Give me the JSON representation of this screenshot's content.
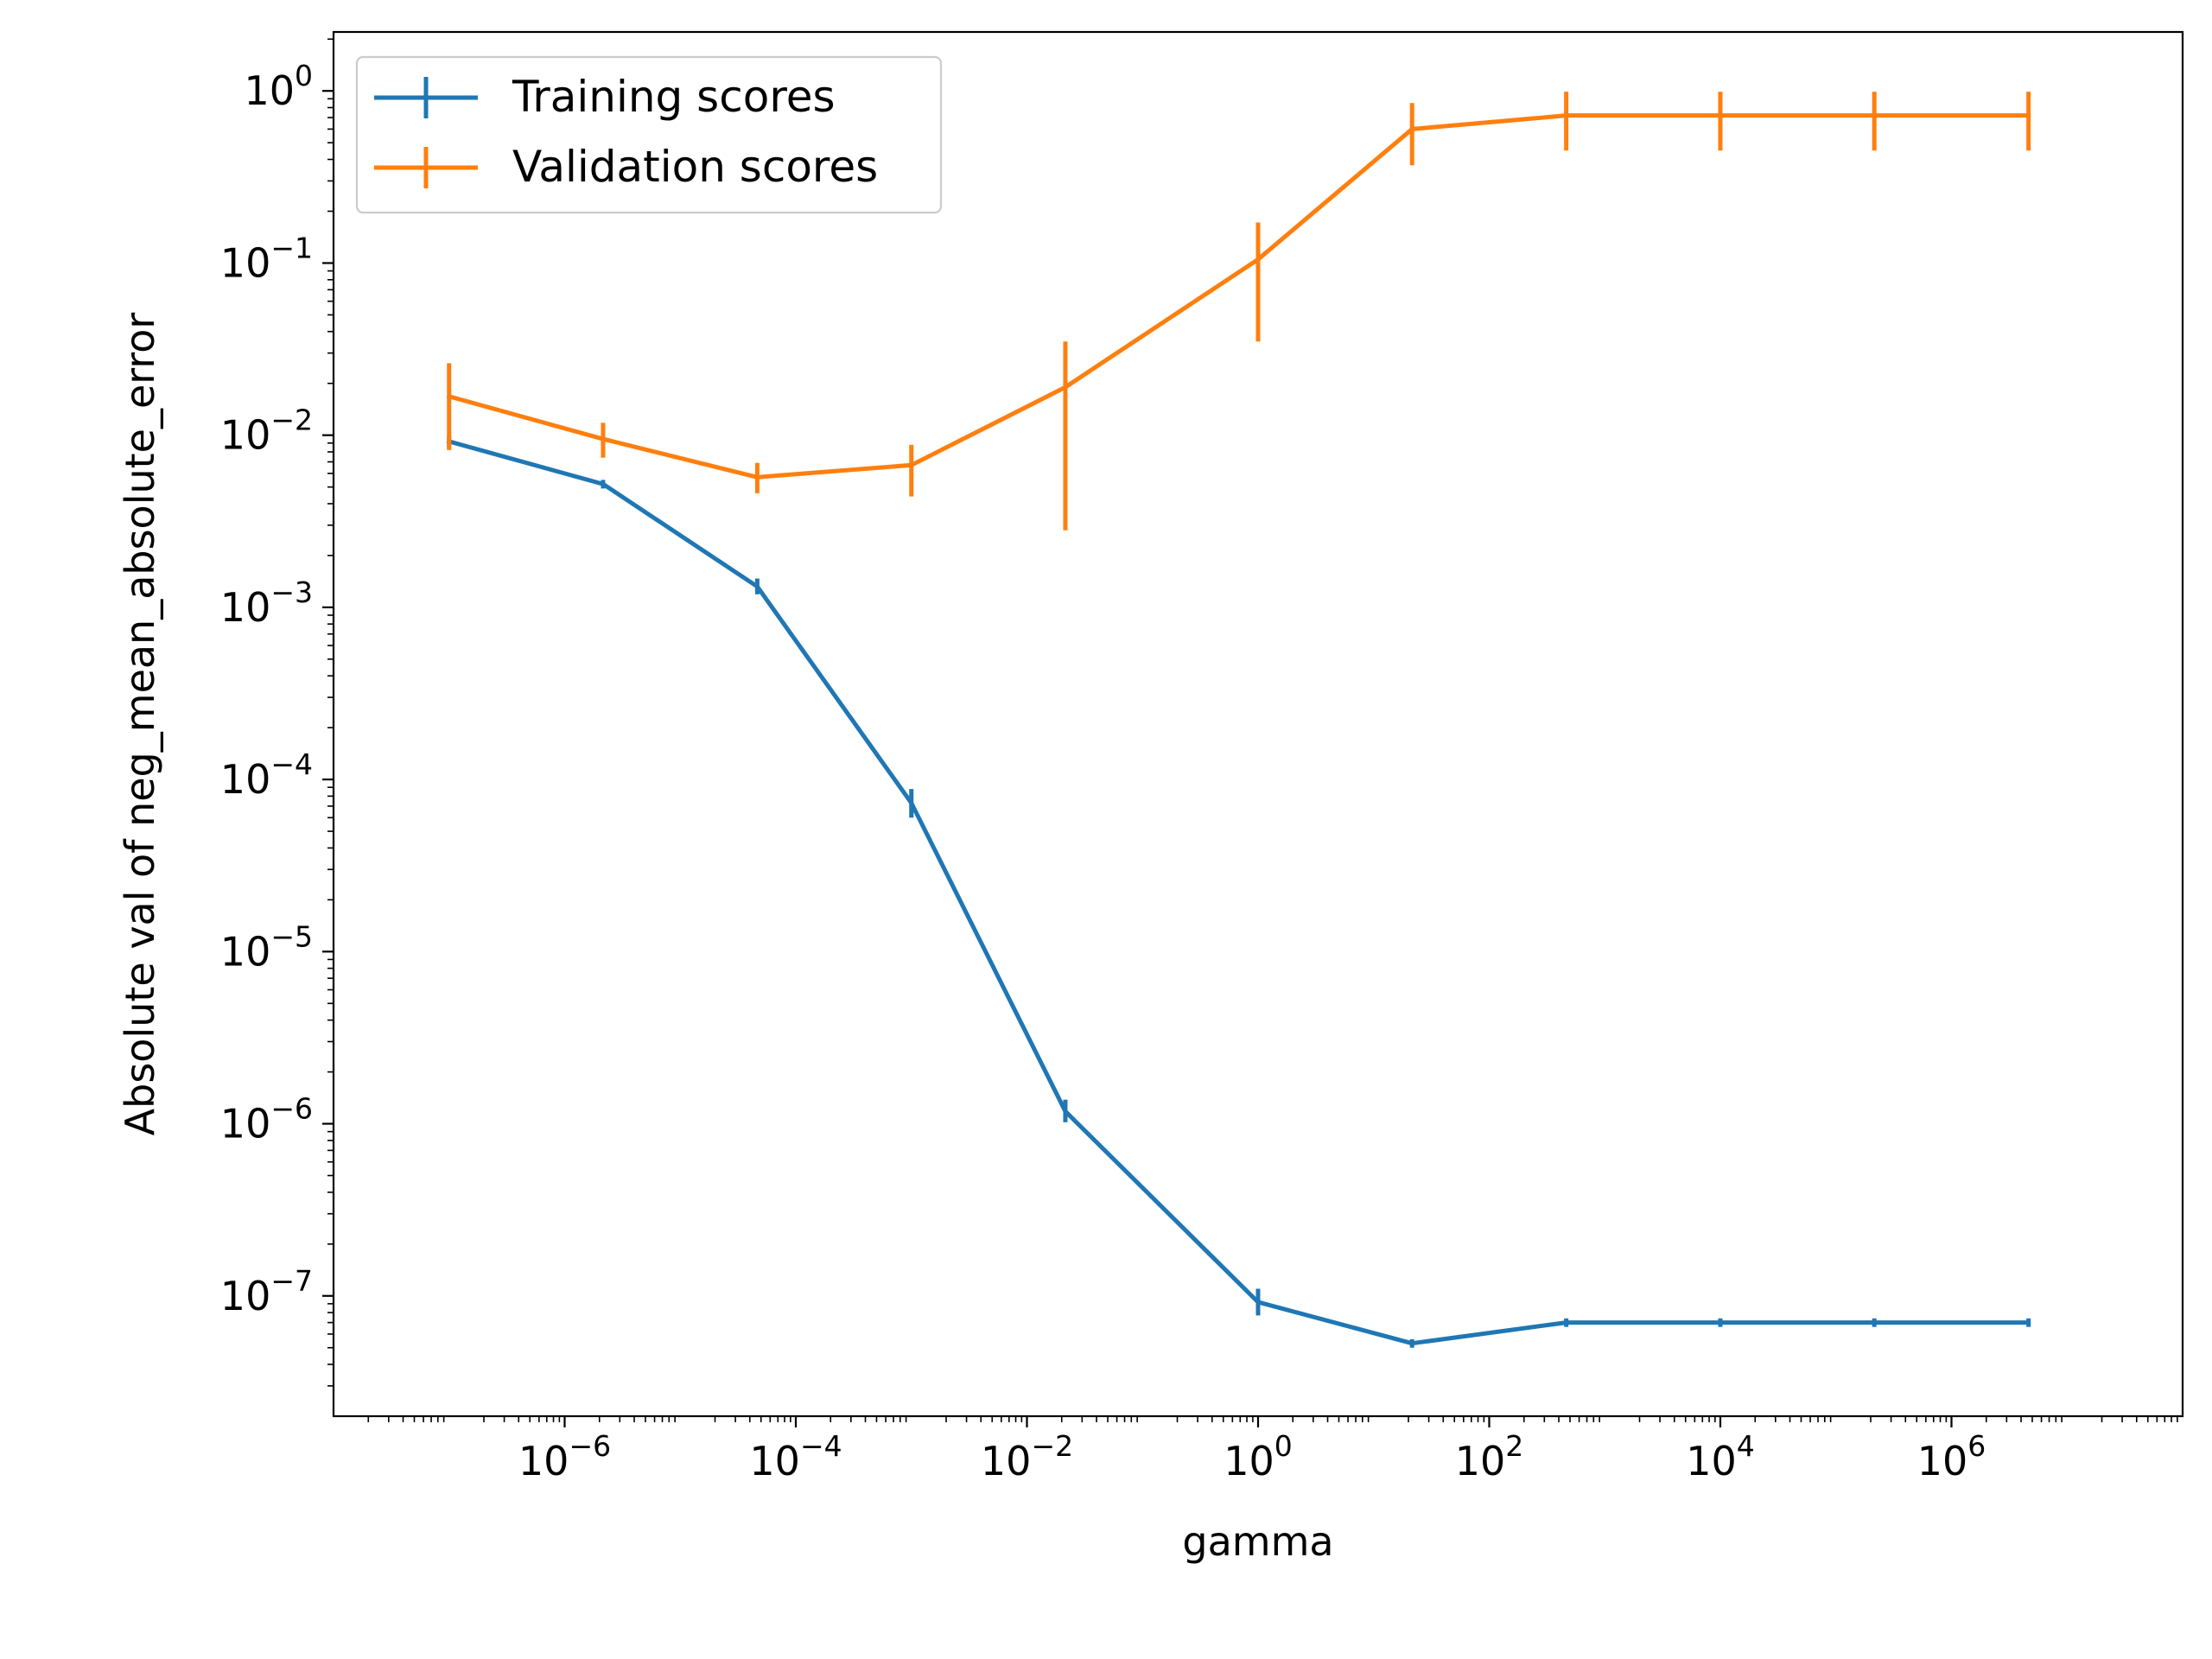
{
  "chart_data": {
    "type": "line",
    "title": "",
    "xlabel": "gamma",
    "ylabel": "Absolute val of neg_mean_absolute_error",
    "xscale": "log",
    "yscale": "log",
    "xlim": [
      1e-08,
      100000000.0
    ],
    "ylim": [
      2e-08,
      2.2
    ],
    "xticks": [
      {
        "value": 1e-06,
        "base": "10",
        "exp": "−6"
      },
      {
        "value": 0.0001,
        "base": "10",
        "exp": "−4"
      },
      {
        "value": 0.01,
        "base": "10",
        "exp": "−2"
      },
      {
        "value": 1,
        "base": "10",
        "exp": "0"
      },
      {
        "value": 100.0,
        "base": "10",
        "exp": "2"
      },
      {
        "value": 10000.0,
        "base": "10",
        "exp": "4"
      },
      {
        "value": 1000000.0,
        "base": "10",
        "exp": "6"
      }
    ],
    "yticks": [
      {
        "value": 1e-07,
        "base": "10",
        "exp": "−7"
      },
      {
        "value": 1e-06,
        "base": "10",
        "exp": "−6"
      },
      {
        "value": 1e-05,
        "base": "10",
        "exp": "−5"
      },
      {
        "value": 0.0001,
        "base": "10",
        "exp": "−4"
      },
      {
        "value": 0.001,
        "base": "10",
        "exp": "−3"
      },
      {
        "value": 0.01,
        "base": "10",
        "exp": "−2"
      },
      {
        "value": 0.1,
        "base": "10",
        "exp": "−1"
      },
      {
        "value": 1,
        "base": "10",
        "exp": "0"
      }
    ],
    "grid": false,
    "legend_position": "top-left",
    "x": [
      1e-07,
      2.15e-06,
      4.64e-05,
      0.001,
      0.0215,
      1,
      21.5,
      464,
      10000.0,
      215000.0,
      4640000.0
    ],
    "series": [
      {
        "name": "Training scores",
        "color": "#1f77b4",
        "values": [
          0.0092,
          0.0052,
          0.00132,
          7.3e-05,
          1.18e-06,
          9.2e-08,
          5.3e-08,
          7e-08,
          7e-08,
          7e-08,
          7e-08
        ],
        "err_low": [
          0.0085,
          0.0049,
          0.00119,
          6e-05,
          1.02e-06,
          7.7e-08,
          5e-08,
          6.6e-08,
          6.6e-08,
          6.6e-08,
          6.6e-08
        ],
        "err_high": [
          0.0099,
          0.0055,
          0.00147,
          8.8e-05,
          1.38e-06,
          1.1e-07,
          5.6e-08,
          7.4e-08,
          7.4e-08,
          7.4e-08,
          7.4e-08
        ]
      },
      {
        "name": "Validation scores",
        "color": "#ff7f0e",
        "values": [
          0.0168,
          0.0095,
          0.0057,
          0.0067,
          0.019,
          0.105,
          0.6,
          0.72,
          0.72,
          0.72,
          0.72
        ],
        "err_low": [
          0.0082,
          0.0074,
          0.0046,
          0.0044,
          0.0028,
          0.035,
          0.37,
          0.45,
          0.45,
          0.45,
          0.45
        ],
        "err_high": [
          0.0262,
          0.0118,
          0.0069,
          0.0088,
          0.035,
          0.172,
          0.85,
          0.99,
          0.99,
          0.99,
          0.99
        ]
      }
    ]
  }
}
